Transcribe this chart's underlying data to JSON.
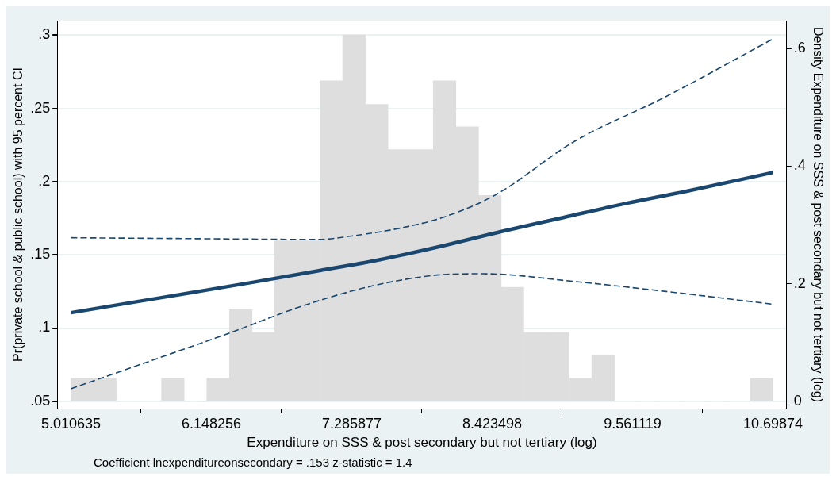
{
  "chart_data": {
    "type": "line",
    "xlabel": "Expenditure on SSS & post secondary but not tertiary (log)",
    "ylabel": "Pr(private school & public school) with 95 percent CI",
    "y2label": "Density Expenditure on SSS & post secondary but not tertiary (log)",
    "annotations": [
      "Coefficient lnexpenditureonsecondary = .153 z-statistic = 1.4"
    ],
    "xlim": [
      4.9,
      10.81
    ],
    "xticks": [
      5.010635,
      6.148256,
      7.285877,
      8.423498,
      9.561119,
      10.69874
    ],
    "ylim": [
      0.045,
      0.31
    ],
    "yticks": [
      {
        "value": 0.05,
        "label": ".05"
      },
      {
        "value": 0.1,
        "label": ".1"
      },
      {
        "value": 0.15,
        "label": ".15"
      },
      {
        "value": 0.2,
        "label": ".2"
      },
      {
        "value": 0.25,
        "label": ".25"
      },
      {
        "value": 0.3,
        "label": ".3"
      }
    ],
    "y2lim": [
      -0.0125,
      0.6475
    ],
    "y2ticks": [
      0,
      {
        "value": 0.2,
        "label": ".2"
      },
      {
        "value": 0.4,
        "label": ".4"
      },
      {
        "value": 0.6,
        "label": ".6"
      }
    ],
    "grid": "y",
    "legend": false,
    "series": [
      {
        "type": "histogram",
        "axis": "y2",
        "color": "#dedede",
        "bins": [
          5.0106,
          5.1941,
          5.3776,
          5.5611,
          5.7446,
          5.9281,
          6.1116,
          6.2951,
          6.4785,
          6.662,
          6.8455,
          7.029,
          7.2125,
          7.396,
          7.5795,
          7.763,
          7.9464,
          8.1299,
          8.3134,
          8.4969,
          8.6804,
          8.8639,
          9.0474,
          9.2309,
          9.4144,
          9.5978,
          9.7813,
          9.9648,
          10.1483,
          10.3318,
          10.5153,
          10.6987
        ],
        "values": [
          0.039,
          0.039,
          0,
          0,
          0.039,
          0,
          0.039,
          0.156,
          0.117,
          0.273,
          0.273,
          0.545,
          0.623,
          0.505,
          0.428,
          0.428,
          0.545,
          0.467,
          0.35,
          0.194,
          0.117,
          0.117,
          0.039,
          0.078,
          0,
          0,
          0,
          0,
          0,
          0,
          0.039
        ]
      },
      {
        "type": "line",
        "color": "#1a476f",
        "line_style": "dashed",
        "x": [
          5.0106,
          5.8,
          6.577,
          7.022,
          7.268,
          7.687,
          8.032,
          8.451,
          9.09,
          9.829,
          10.6987
        ],
        "values": [
          0.1617,
          0.1612,
          0.1607,
          0.1605,
          0.1627,
          0.1684,
          0.1758,
          0.191,
          0.2275,
          0.258,
          0.2975
        ]
      },
      {
        "type": "line",
        "color": "#1a476f",
        "line_style": "dashed",
        "x": [
          5.0106,
          5.345,
          5.838,
          6.331,
          6.824,
          7.317,
          7.687,
          8.057,
          8.352,
          9.092,
          9.832,
          10.6987
        ],
        "values": [
          0.0586,
          0.0684,
          0.083,
          0.0977,
          0.1133,
          0.126,
          0.1328,
          0.1367,
          0.1371,
          0.1318,
          0.125,
          0.1163
        ]
      },
      {
        "type": "line",
        "color": "#1a476f",
        "line_style": "solid",
        "x": [
          5.0106,
          5.5,
          6.0,
          6.5,
          7.0,
          7.5,
          8.0,
          8.5,
          9.0,
          9.5,
          10.0,
          10.6987
        ],
        "values": [
          0.1105,
          0.1174,
          0.1244,
          0.1315,
          0.1389,
          0.1465,
          0.1557,
          0.166,
          0.1755,
          0.185,
          0.1935,
          0.2063
        ]
      }
    ]
  }
}
